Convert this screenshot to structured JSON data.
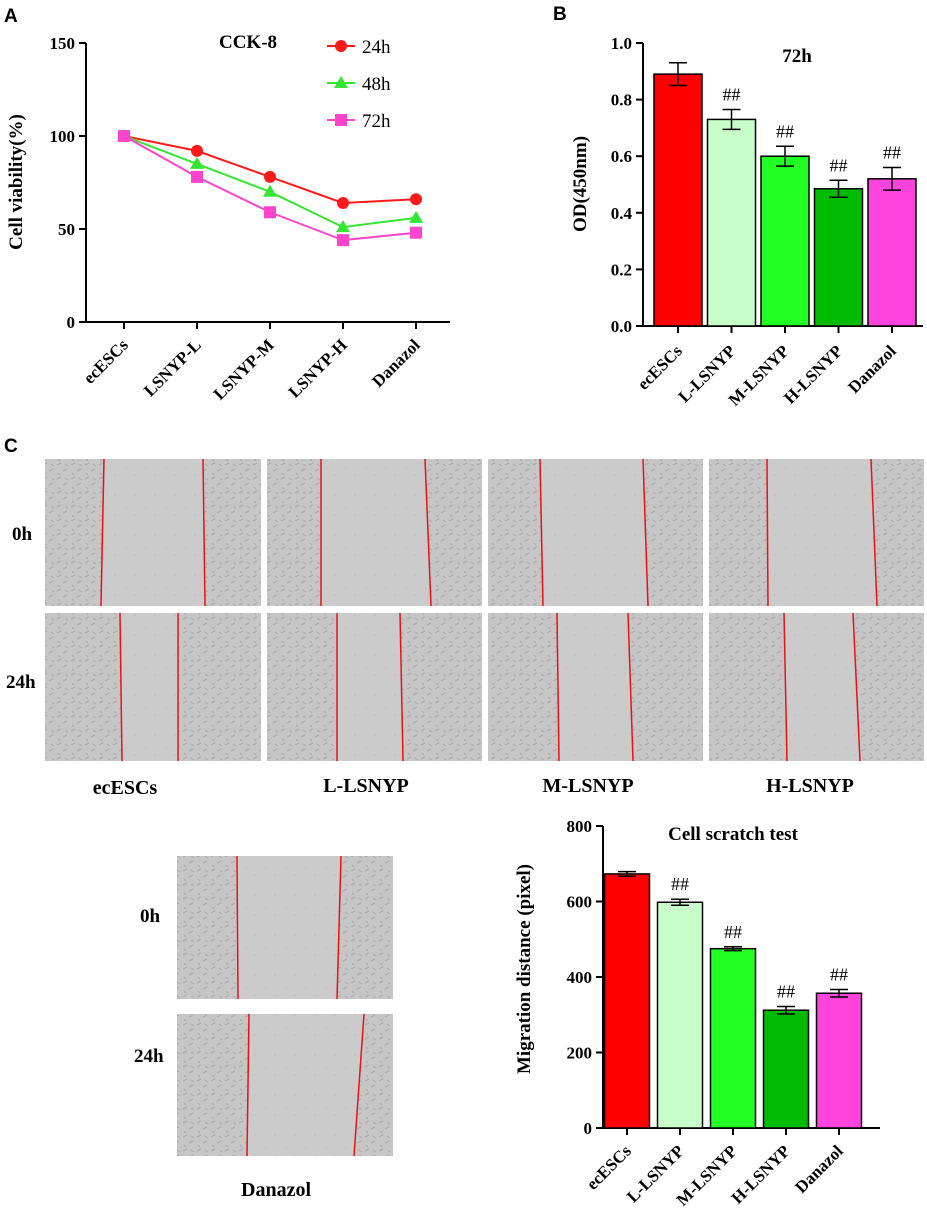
{
  "panels": {
    "a": "A",
    "b": "B",
    "c": "C"
  },
  "chart_data": [
    {
      "id": "A",
      "type": "line",
      "title": "CCK-8",
      "xlabel": "",
      "ylabel": "Cell viability(%)",
      "categories": [
        "ecESCs",
        "LSNYP-L",
        "LSNYP-M",
        "LSNYP-H",
        "Danazol"
      ],
      "ylim": [
        0,
        150
      ],
      "yticks": [
        0,
        50,
        100,
        150
      ],
      "legend_position": "top-right",
      "series": [
        {
          "name": "24h",
          "marker": "circle",
          "color": "#ff1a1a",
          "values": [
            100,
            92,
            78,
            64,
            66
          ]
        },
        {
          "name": "48h",
          "marker": "triangle",
          "color": "#33e633",
          "values": [
            100,
            85,
            70,
            51,
            56
          ]
        },
        {
          "name": "72h",
          "marker": "square",
          "color": "#ff44cc",
          "values": [
            100,
            78,
            59,
            44,
            48
          ]
        }
      ]
    },
    {
      "id": "B",
      "type": "bar",
      "title": "72h",
      "xlabel": "",
      "ylabel": "OD(450nm)",
      "categories": [
        "ecESCs",
        "L-LSNYP",
        "M-LSNYP",
        "H-LSNYP",
        "Danazol"
      ],
      "values": [
        0.89,
        0.73,
        0.6,
        0.485,
        0.52
      ],
      "errors": [
        0.04,
        0.035,
        0.035,
        0.03,
        0.04
      ],
      "annotations": [
        "",
        "##",
        "##",
        "##",
        "##"
      ],
      "colors": [
        "#ff0000",
        "#c8ffc8",
        "#22ff22",
        "#00bb00",
        "#ff44dd"
      ],
      "ylim": [
        0,
        1.0
      ],
      "yticks": [
        0.0,
        0.2,
        0.4,
        0.6,
        0.8,
        1.0
      ],
      "tick_decimals": 1
    },
    {
      "id": "C",
      "type": "bar",
      "title": "Cell scratch test",
      "xlabel": "",
      "ylabel": "Migration distance (pixel)",
      "categories": [
        "ecESCs",
        "L-LSNYP",
        "M-LSNYP",
        "H-LSNYP",
        "Danazol"
      ],
      "values": [
        673,
        598,
        475,
        312,
        357
      ],
      "errors": [
        6,
        8,
        5,
        10,
        10
      ],
      "annotations": [
        "",
        "##",
        "##",
        "##",
        "##"
      ],
      "colors": [
        "#ff0000",
        "#c8ffc8",
        "#22ff22",
        "#00bb00",
        "#ff44dd"
      ],
      "ylim": [
        0,
        800
      ],
      "yticks": [
        0,
        200,
        400,
        600,
        800
      ],
      "tick_decimals": 0
    }
  ],
  "micrographs": {
    "row_labels": [
      "0h",
      "24h"
    ],
    "column_labels": [
      "ecESCs",
      "L-LSNYP",
      "M-LSNYP",
      "H-LSNYP"
    ],
    "danazol_label": "Danazol",
    "danazol_row_labels": [
      "0h",
      "24h"
    ],
    "background_color": "#c4c4c4",
    "scratch_line_color": "#ee1111"
  }
}
